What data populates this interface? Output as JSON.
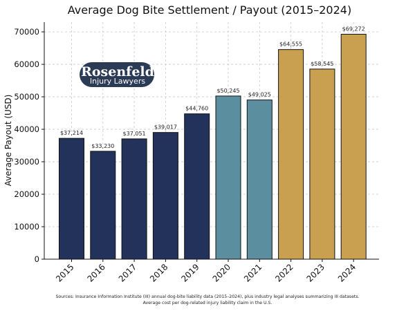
{
  "chart_data": {
    "type": "bar",
    "title": "Average Dog Bite Settlement / Payout (2015–2024)",
    "xlabel": "",
    "ylabel": "Average Payout (USD)",
    "categories": [
      "2015",
      "2016",
      "2017",
      "2018",
      "2019",
      "2020",
      "2021",
      "2022",
      "2023",
      "2024"
    ],
    "values": [
      37214,
      33230,
      37051,
      39017,
      44760,
      50245,
      49025,
      64555,
      58545,
      69272
    ],
    "value_labels": [
      "$37,214",
      "$33,230",
      "$37,051",
      "$39,017",
      "$44,760",
      "$50,245",
      "$49,025",
      "$64,555",
      "$58,545",
      "$69,272"
    ],
    "bar_colors": [
      "#22325a",
      "#22325a",
      "#22325a",
      "#22325a",
      "#22325a",
      "#5b8e9e",
      "#5b8e9e",
      "#c8a050",
      "#c8a050",
      "#c8a050"
    ],
    "ylim": [
      0,
      73000
    ],
    "yticks": [
      0,
      10000,
      20000,
      30000,
      40000,
      50000,
      60000,
      70000
    ],
    "grid": true,
    "x_tick_rotation": 45
  },
  "logo": {
    "name": "Rosenfeld",
    "tagline": "Injury Lawyers",
    "color": "#2b3a55"
  },
  "footer": {
    "line1": "Sources: Insurance Information Institute (III) annual dog-bite liability data (2015–2024), plus industry legal analyses summarizing III datasets.",
    "line2": "Average cost per dog-related injury liability claim in the U.S."
  }
}
